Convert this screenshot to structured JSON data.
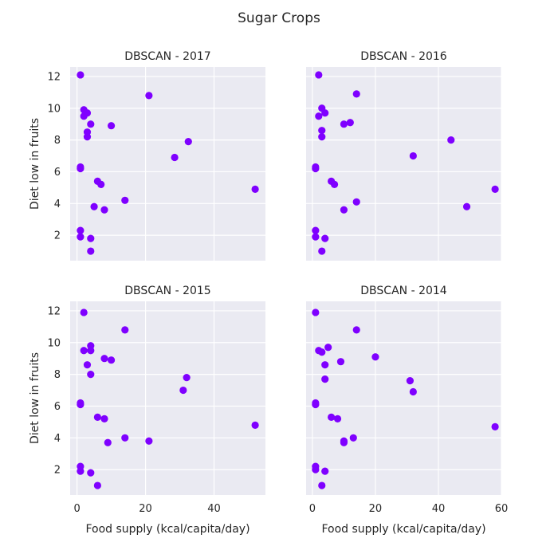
{
  "title": "Sugar Crops",
  "colors": {
    "point": "#7f00ff",
    "panel_background": "#eaeaf2",
    "grid": "#ffffff"
  },
  "chart_data": [
    {
      "type": "scatter",
      "title": "DBSCAN - 2017",
      "xlabel": "",
      "ylabel": "Diet low in fruits",
      "xlim": [
        -2,
        55
      ],
      "ylim": [
        0.4,
        12.6
      ],
      "xticks": [
        0,
        20,
        40
      ],
      "yticks": [
        2,
        4,
        6,
        8,
        10,
        12
      ],
      "grid": true,
      "x": [
        1,
        1,
        1,
        1,
        1,
        2,
        2,
        3,
        3,
        3,
        4,
        4,
        4,
        5,
        6,
        7,
        8,
        10,
        14,
        21,
        28.5,
        32.5,
        52
      ],
      "y": [
        12.1,
        6.3,
        6.2,
        2.3,
        1.9,
        9.9,
        9.5,
        9.7,
        8.5,
        8.2,
        9.0,
        1.8,
        1.0,
        3.8,
        5.4,
        5.2,
        3.6,
        8.9,
        4.2,
        10.8,
        6.9,
        7.9,
        4.9
      ]
    },
    {
      "type": "scatter",
      "title": "DBSCAN - 2016",
      "xlabel": "",
      "ylabel": "",
      "xlim": [
        -2,
        60
      ],
      "ylim": [
        0.4,
        12.6
      ],
      "xticks": [
        0,
        20,
        40,
        60
      ],
      "yticks": [
        2,
        4,
        6,
        8,
        10,
        12
      ],
      "grid": true,
      "x": [
        2,
        1,
        1,
        1,
        1,
        3,
        4,
        2,
        3,
        3,
        3,
        4,
        6,
        7,
        10,
        12,
        10,
        14,
        14,
        32,
        44,
        49,
        58
      ],
      "y": [
        12.1,
        6.3,
        6.2,
        2.3,
        1.9,
        10.0,
        9.7,
        9.5,
        8.6,
        8.2,
        1.0,
        1.8,
        5.4,
        5.2,
        9.0,
        9.1,
        3.6,
        4.1,
        10.9,
        7.0,
        8.0,
        3.8,
        4.9
      ]
    },
    {
      "type": "scatter",
      "title": "DBSCAN - 2015",
      "xlabel": "Food supply (kcal/capita/day)",
      "ylabel": "Diet low in fruits",
      "xlim": [
        -2,
        55
      ],
      "ylim": [
        0.4,
        12.6
      ],
      "xticks": [
        0,
        20,
        40
      ],
      "yticks": [
        2,
        4,
        6,
        8,
        10,
        12
      ],
      "grid": true,
      "x": [
        2,
        1,
        1,
        1,
        1,
        2,
        4,
        4,
        3,
        4,
        4,
        6,
        8,
        8,
        9,
        10,
        14,
        14,
        21,
        31,
        32,
        52,
        6
      ],
      "y": [
        11.9,
        6.2,
        6.1,
        2.2,
        1.9,
        9.5,
        9.8,
        9.5,
        8.6,
        8.0,
        1.8,
        5.3,
        5.2,
        9.0,
        3.7,
        8.9,
        4.0,
        10.8,
        3.8,
        7.0,
        7.8,
        4.8,
        1.0
      ]
    },
    {
      "type": "scatter",
      "title": "DBSCAN - 2014",
      "xlabel": "Food supply (kcal/capita/day)",
      "ylabel": "",
      "xlim": [
        -2,
        60
      ],
      "ylim": [
        0.4,
        12.6
      ],
      "xticks": [
        0,
        20,
        40,
        60
      ],
      "yticks": [
        2,
        4,
        6,
        8,
        10,
        12
      ],
      "grid": true,
      "x": [
        1,
        1,
        1,
        1,
        1,
        2,
        3,
        5,
        4,
        4,
        9,
        4,
        3,
        6,
        8,
        10,
        10,
        13,
        14,
        20,
        31,
        32,
        58
      ],
      "y": [
        11.9,
        6.2,
        6.1,
        2.2,
        2.0,
        9.5,
        9.4,
        9.7,
        8.6,
        7.7,
        8.8,
        1.9,
        1.0,
        5.3,
        5.2,
        3.8,
        3.7,
        4.0,
        10.8,
        9.1,
        7.6,
        6.9,
        4.7
      ]
    }
  ]
}
